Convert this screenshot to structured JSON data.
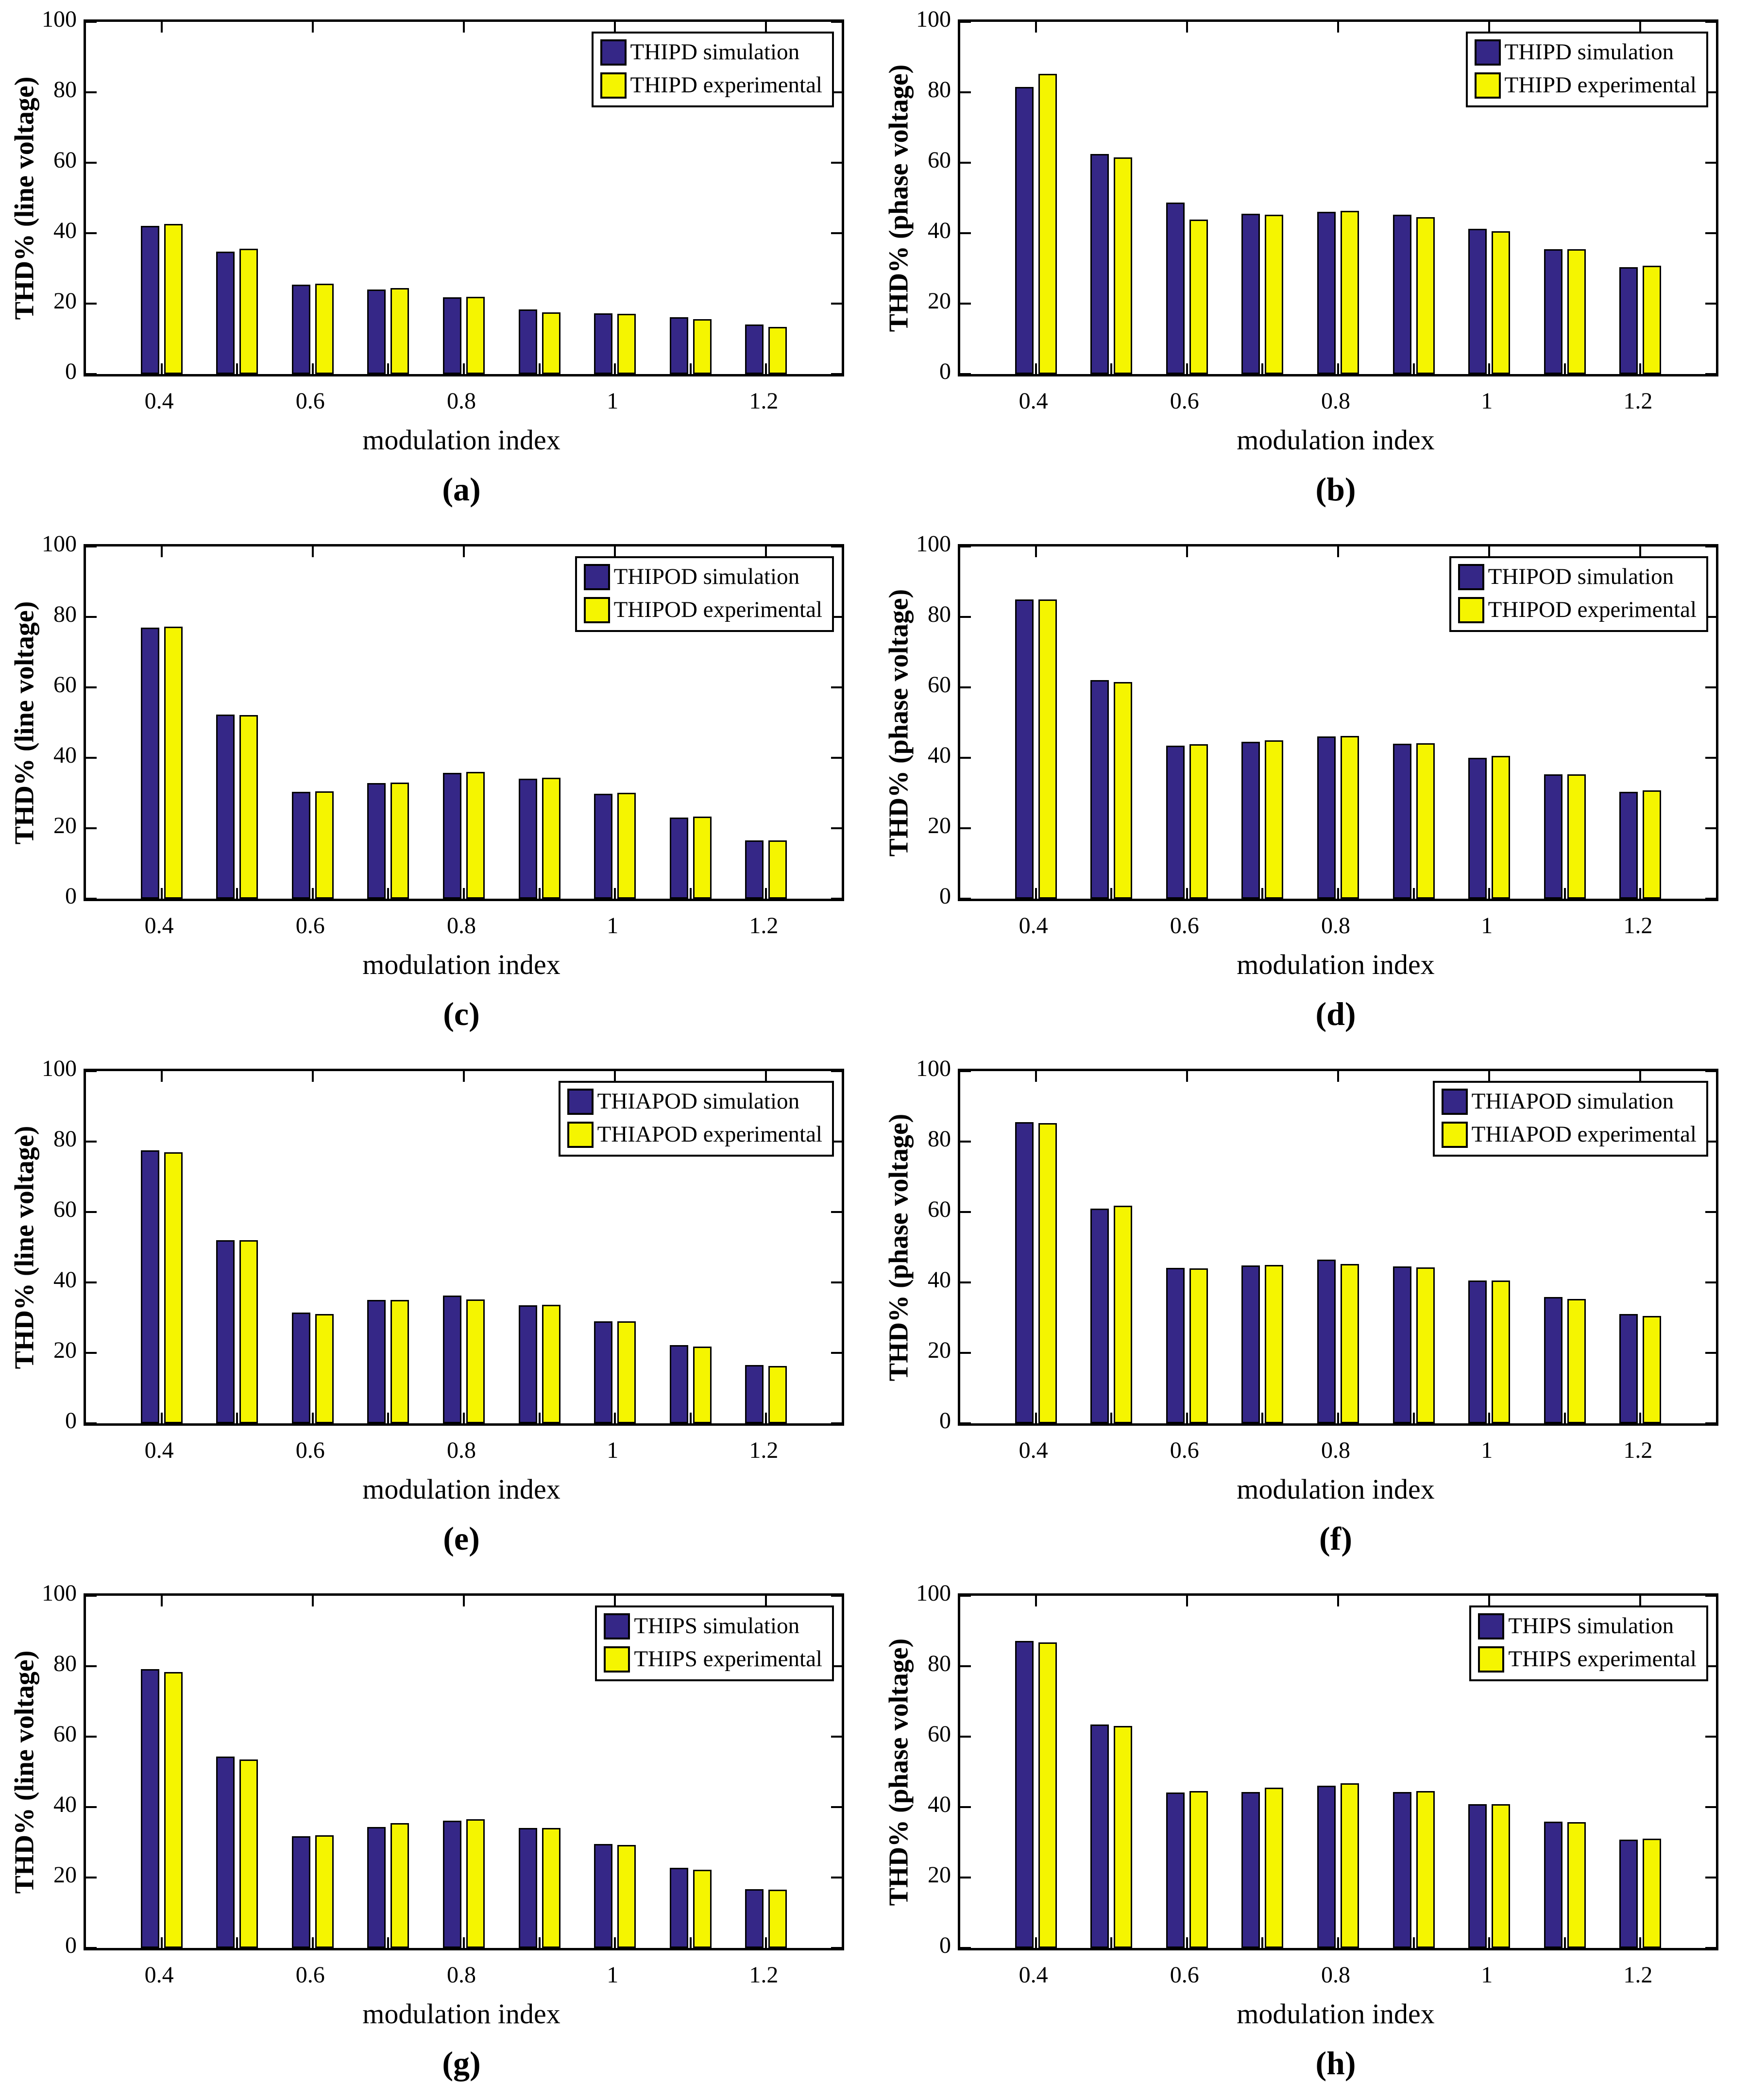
{
  "colors": {
    "simulation": "#352787",
    "experimental": "#F5F500",
    "bar_border": "#000000",
    "axis": "#000000",
    "background": "#FFFFFF"
  },
  "chart_data": [
    {
      "type": "bar",
      "panel": "(a)",
      "ylabel": "THD% (line voltage)",
      "xlabel": "modulation index",
      "legend": [
        "THIPD simulation",
        "THIPD experimental"
      ],
      "x": [
        0.4,
        0.5,
        0.6,
        0.7,
        0.8,
        0.9,
        1.0,
        1.1,
        1.2
      ],
      "series": [
        {
          "name": "THIPD simulation",
          "color_key": "simulation",
          "values": [
            42.0,
            34.8,
            25.4,
            24.0,
            21.8,
            18.3,
            17.3,
            16.2,
            14.0
          ]
        },
        {
          "name": "THIPD experimental",
          "color_key": "experimental",
          "values": [
            42.6,
            35.6,
            25.6,
            24.4,
            21.9,
            17.5,
            17.1,
            15.6,
            13.4
          ]
        }
      ],
      "xlim": [
        0.3,
        1.3
      ],
      "ylim": [
        0,
        100
      ],
      "grid": false,
      "legend_position": "top-right",
      "yticks": [
        0,
        20,
        40,
        60,
        80,
        100
      ],
      "ytick_labels": [
        "0",
        "20",
        "40",
        "60",
        "80",
        "100"
      ],
      "xticks": [
        0.4,
        0.6,
        0.8,
        1,
        1.2
      ],
      "xtick_labels": [
        "0.4",
        "0.6",
        "0.8",
        "1",
        "1.2"
      ]
    },
    {
      "type": "bar",
      "panel": "(b)",
      "ylabel": "THD% (phase voltage)",
      "xlabel": "modulation index",
      "legend": [
        "THIPD simulation",
        "THIPD experimental"
      ],
      "x": [
        0.4,
        0.5,
        0.6,
        0.7,
        0.8,
        0.9,
        1.0,
        1.1,
        1.2
      ],
      "series": [
        {
          "name": "THIPD simulation",
          "color_key": "simulation",
          "values": [
            81.5,
            62.5,
            48.7,
            45.5,
            46.0,
            45.2,
            41.3,
            35.5,
            30.3
          ]
        },
        {
          "name": "THIPD experimental",
          "color_key": "experimental",
          "values": [
            85.3,
            61.5,
            43.8,
            45.2,
            46.3,
            44.5,
            40.5,
            35.5,
            30.7
          ]
        }
      ],
      "xlim": [
        0.3,
        1.3
      ],
      "ylim": [
        0,
        100
      ],
      "grid": false,
      "legend_position": "top-right",
      "yticks": [
        0,
        20,
        40,
        60,
        80,
        100
      ],
      "ytick_labels": [
        "0",
        "20",
        "40",
        "60",
        "80",
        "100"
      ],
      "xticks": [
        0.4,
        0.6,
        0.8,
        1,
        1.2
      ],
      "xtick_labels": [
        "0.4",
        "0.6",
        "0.8",
        "1",
        "1.2"
      ]
    },
    {
      "type": "bar",
      "panel": "(c)",
      "ylabel": "THD% (line voltage)",
      "xlabel": "modulation index",
      "legend": [
        "THIPOD simulation",
        "THIPOD experimental"
      ],
      "x": [
        0.4,
        0.5,
        0.6,
        0.7,
        0.8,
        0.9,
        1.0,
        1.1,
        1.2
      ],
      "series": [
        {
          "name": "THIPOD simulation",
          "color_key": "simulation",
          "values": [
            77.0,
            52.3,
            30.3,
            32.8,
            35.7,
            34.0,
            29.8,
            23.0,
            16.5
          ]
        },
        {
          "name": "THIPOD experimental",
          "color_key": "experimental",
          "values": [
            77.2,
            52.2,
            30.5,
            33.0,
            36.0,
            34.3,
            30.0,
            23.3,
            16.5
          ]
        }
      ],
      "xlim": [
        0.3,
        1.3
      ],
      "ylim": [
        0,
        100
      ],
      "grid": false,
      "legend_position": "top-right",
      "yticks": [
        0,
        20,
        40,
        60,
        80,
        100
      ],
      "ytick_labels": [
        "0",
        "20",
        "40",
        "60",
        "80",
        "100"
      ],
      "xticks": [
        0.4,
        0.6,
        0.8,
        1,
        1.2
      ],
      "xtick_labels": [
        "0.4",
        "0.6",
        "0.8",
        "1",
        "1.2"
      ]
    },
    {
      "type": "bar",
      "panel": "(d)",
      "ylabel": "THD% (phase voltage)",
      "xlabel": "modulation index",
      "legend": [
        "THIPOD simulation",
        "THIPOD experimental"
      ],
      "x": [
        0.4,
        0.5,
        0.6,
        0.7,
        0.8,
        0.9,
        1.0,
        1.1,
        1.2
      ],
      "series": [
        {
          "name": "THIPOD simulation",
          "color_key": "simulation",
          "values": [
            85.0,
            62.0,
            43.5,
            44.5,
            46.0,
            44.0,
            40.0,
            35.3,
            30.3
          ]
        },
        {
          "name": "THIPOD experimental",
          "color_key": "experimental",
          "values": [
            85.0,
            61.5,
            43.8,
            45.0,
            46.2,
            44.2,
            40.5,
            35.3,
            30.7
          ]
        }
      ],
      "xlim": [
        0.3,
        1.3
      ],
      "ylim": [
        0,
        100
      ],
      "grid": false,
      "legend_position": "top-right",
      "yticks": [
        0,
        20,
        40,
        60,
        80,
        100
      ],
      "ytick_labels": [
        "0",
        "20",
        "40",
        "60",
        "80",
        "100"
      ],
      "xticks": [
        0.4,
        0.6,
        0.8,
        1,
        1.2
      ],
      "xtick_labels": [
        "0.4",
        "0.6",
        "0.8",
        "1",
        "1.2"
      ]
    },
    {
      "type": "bar",
      "panel": "(e)",
      "ylabel": "THD% (line voltage)",
      "xlabel": "modulation index",
      "legend": [
        "THIAPOD simulation",
        "THIAPOD experimental"
      ],
      "x": [
        0.4,
        0.5,
        0.6,
        0.7,
        0.8,
        0.9,
        1.0,
        1.1,
        1.2
      ],
      "series": [
        {
          "name": "THIAPOD simulation",
          "color_key": "simulation",
          "values": [
            77.5,
            52.0,
            31.5,
            35.0,
            36.3,
            33.5,
            29.0,
            22.2,
            16.5
          ]
        },
        {
          "name": "THIAPOD experimental",
          "color_key": "experimental",
          "values": [
            77.0,
            52.0,
            31.0,
            35.0,
            35.2,
            33.7,
            29.0,
            21.8,
            16.3
          ]
        }
      ],
      "xlim": [
        0.3,
        1.3
      ],
      "ylim": [
        0,
        100
      ],
      "grid": false,
      "legend_position": "top-right",
      "yticks": [
        0,
        20,
        40,
        60,
        80,
        100
      ],
      "ytick_labels": [
        "0",
        "20",
        "40",
        "60",
        "80",
        "100"
      ],
      "xticks": [
        0.4,
        0.6,
        0.8,
        1,
        1.2
      ],
      "xtick_labels": [
        "0.4",
        "0.6",
        "0.8",
        "1",
        "1.2"
      ]
    },
    {
      "type": "bar",
      "panel": "(f)",
      "ylabel": "THD% (phase voltage)",
      "xlabel": "modulation index",
      "legend": [
        "THIAPOD simulation",
        "THIAPOD experimental"
      ],
      "x": [
        0.4,
        0.5,
        0.6,
        0.7,
        0.8,
        0.9,
        1.0,
        1.1,
        1.2
      ],
      "series": [
        {
          "name": "THIAPOD simulation",
          "color_key": "simulation",
          "values": [
            85.5,
            61.0,
            44.2,
            44.8,
            46.5,
            44.5,
            40.5,
            35.8,
            31.0
          ]
        },
        {
          "name": "THIAPOD experimental",
          "color_key": "experimental",
          "values": [
            85.2,
            61.8,
            44.0,
            45.0,
            45.2,
            44.3,
            40.5,
            35.3,
            30.5
          ]
        }
      ],
      "xlim": [
        0.3,
        1.3
      ],
      "ylim": [
        0,
        100
      ],
      "grid": false,
      "legend_position": "top-right",
      "yticks": [
        0,
        20,
        40,
        60,
        80,
        100
      ],
      "ytick_labels": [
        "0",
        "20",
        "40",
        "60",
        "80",
        "100"
      ],
      "xticks": [
        0.4,
        0.6,
        0.8,
        1,
        1.2
      ],
      "xtick_labels": [
        "0.4",
        "0.6",
        "0.8",
        "1",
        "1.2"
      ]
    },
    {
      "type": "bar",
      "panel": "(g)",
      "ylabel": "THD% (line voltage)",
      "xlabel": "modulation index",
      "legend": [
        "THIPS simulation",
        "THIPS experimental"
      ],
      "x": [
        0.4,
        0.5,
        0.6,
        0.7,
        0.8,
        0.9,
        1.0,
        1.1,
        1.2
      ],
      "series": [
        {
          "name": "THIPS simulation",
          "color_key": "simulation",
          "values": [
            79.2,
            54.3,
            31.7,
            34.3,
            36.2,
            34.0,
            29.5,
            22.7,
            16.7
          ]
        },
        {
          "name": "THIPS experimental",
          "color_key": "experimental",
          "values": [
            78.3,
            53.5,
            32.0,
            35.5,
            36.5,
            34.0,
            29.2,
            22.2,
            16.5
          ]
        }
      ],
      "xlim": [
        0.3,
        1.3
      ],
      "ylim": [
        0,
        100
      ],
      "grid": false,
      "legend_position": "top-right",
      "yticks": [
        0,
        20,
        40,
        60,
        80,
        100
      ],
      "ytick_labels": [
        "0",
        "20",
        "40",
        "60",
        "80",
        "100"
      ],
      "xticks": [
        0.4,
        0.6,
        0.8,
        1,
        1.2
      ],
      "xtick_labels": [
        "0.4",
        "0.6",
        "0.8",
        "1",
        "1.2"
      ]
    },
    {
      "type": "bar",
      "panel": "(h)",
      "ylabel": "THD% (phase voltage)",
      "xlabel": "modulation index",
      "legend": [
        "THIPS simulation",
        "THIPS experimental"
      ],
      "x": [
        0.4,
        0.5,
        0.6,
        0.7,
        0.8,
        0.9,
        1.0,
        1.1,
        1.2
      ],
      "series": [
        {
          "name": "THIPS simulation",
          "color_key": "simulation",
          "values": [
            87.2,
            63.5,
            44.2,
            44.3,
            46.0,
            44.3,
            40.8,
            35.8,
            30.8
          ]
        },
        {
          "name": "THIPS experimental",
          "color_key": "experimental",
          "values": [
            86.8,
            63.0,
            44.5,
            45.5,
            46.8,
            44.6,
            40.8,
            35.7,
            31.0
          ]
        }
      ],
      "xlim": [
        0.3,
        1.3
      ],
      "ylim": [
        0,
        100
      ],
      "grid": false,
      "legend_position": "top-right",
      "yticks": [
        0,
        20,
        40,
        60,
        80,
        100
      ],
      "ytick_labels": [
        "0",
        "20",
        "40",
        "60",
        "80",
        "100"
      ],
      "xticks": [
        0.4,
        0.6,
        0.8,
        1,
        1.2
      ],
      "xtick_labels": [
        "0.4",
        "0.6",
        "0.8",
        "1",
        "1.2"
      ]
    }
  ]
}
